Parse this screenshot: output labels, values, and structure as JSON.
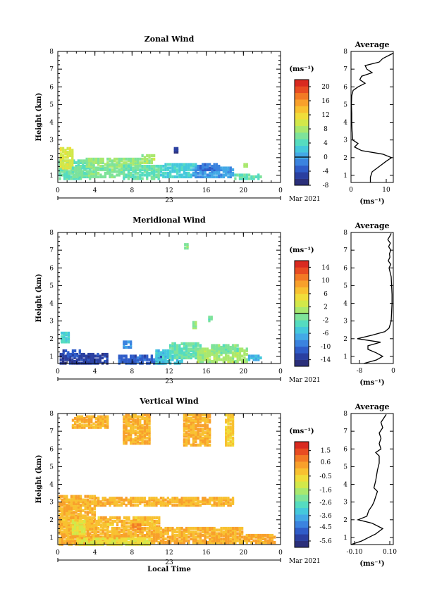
{
  "chart_data": [
    {
      "type": "heatmap",
      "title": "Zonal Wind",
      "ylabel": "Height (km)",
      "x_ticks": [
        "0",
        "4",
        "8",
        "12",
        "16",
        "20",
        "0"
      ],
      "y_ticks": [
        "1",
        "2",
        "3",
        "4",
        "5",
        "6",
        "7",
        "8"
      ],
      "xlim": [
        0,
        24
      ],
      "ylim": [
        0.6,
        8
      ],
      "date_day": "23",
      "date_label": "Mar 2021",
      "colorbar": {
        "unit": "(ms⁻¹)",
        "min": -8,
        "max": 22,
        "ticks": [
          "20",
          "16",
          "12",
          "8",
          "4",
          "0",
          "-4",
          "-8"
        ],
        "tick_values": [
          20,
          16,
          12,
          8,
          4,
          0,
          -4,
          -8
        ],
        "zero_line": 0
      },
      "cells_note_free": true,
      "blocks": [
        {
          "t0": 0.1,
          "t1": 3.5,
          "h0": 0.8,
          "h1": 1.9,
          "v": 5
        },
        {
          "t0": 0.2,
          "t1": 1.5,
          "h0": 1.4,
          "h1": 2.6,
          "v": 10
        },
        {
          "t0": 1.5,
          "t1": 7.0,
          "h0": 0.9,
          "h1": 1.5,
          "v": 6
        },
        {
          "t0": 3.0,
          "t1": 9.0,
          "h0": 1.5,
          "h1": 2.0,
          "v": 7
        },
        {
          "t0": 7.0,
          "t1": 11.0,
          "h0": 0.8,
          "h1": 1.6,
          "v": 5
        },
        {
          "t0": 9.0,
          "t1": 10.5,
          "h0": 1.7,
          "h1": 2.2,
          "v": 8
        },
        {
          "t0": 11.0,
          "t1": 15.0,
          "h0": 0.9,
          "h1": 1.7,
          "v": 3
        },
        {
          "t0": 14.5,
          "t1": 19.0,
          "h0": 0.9,
          "h1": 1.5,
          "v": 0
        },
        {
          "t0": 15.0,
          "t1": 17.5,
          "h0": 1.3,
          "h1": 1.7,
          "v": -2
        },
        {
          "t0": 19.0,
          "t1": 22.0,
          "h0": 0.8,
          "h1": 1.1,
          "v": 5
        },
        {
          "t0": 12.5,
          "t1": 12.9,
          "h0": 2.3,
          "h1": 2.6,
          "v": -6
        },
        {
          "t0": 20.0,
          "t1": 20.4,
          "h0": 1.5,
          "h1": 1.7,
          "v": 7
        }
      ],
      "profile": {
        "title": "Average",
        "x_ticks": [
          "0",
          "10"
        ],
        "xlim": [
          0,
          12
        ],
        "xlabel": "(ms⁻¹)",
        "heights": [
          0.6,
          0.9,
          1.2,
          1.5,
          1.8,
          2.0,
          2.2,
          2.4,
          2.6,
          2.8,
          3.0,
          3.5,
          4.0,
          4.5,
          5.0,
          5.5,
          5.8,
          6.0,
          6.2,
          6.4,
          6.6,
          6.8,
          7.0,
          7.2,
          7.4,
          7.6,
          7.8,
          7.9
        ],
        "values": [
          5.5,
          5.5,
          6,
          8,
          10,
          11.5,
          9,
          3,
          1,
          2,
          0.5,
          0.3,
          0.2,
          0.2,
          0.1,
          0.2,
          0.6,
          2,
          4,
          2.5,
          3,
          6,
          4.5,
          4,
          8,
          9,
          11,
          12
        ]
      }
    },
    {
      "type": "heatmap",
      "title": "Meridional Wind",
      "ylabel": "Height (km)",
      "x_ticks": [
        "0",
        "4",
        "8",
        "12",
        "16",
        "20",
        "0"
      ],
      "y_ticks": [
        "1",
        "2",
        "3",
        "4",
        "5",
        "6",
        "7",
        "8"
      ],
      "xlim": [
        0,
        24
      ],
      "ylim": [
        0.6,
        8
      ],
      "date_day": "23",
      "date_label": "Mar 2021",
      "colorbar": {
        "unit": "(ms⁻¹)",
        "min": -16,
        "max": 16,
        "ticks": [
          "14",
          "10",
          "6",
          "2",
          "-2",
          "-6",
          "-10",
          "-14"
        ],
        "tick_values": [
          14,
          10,
          6,
          2,
          -2,
          -6,
          -10,
          -14
        ],
        "zero_line": 0
      },
      "blocks": [
        {
          "t0": 0.2,
          "t1": 5.3,
          "h0": 0.6,
          "h1": 1.1,
          "v": -13
        },
        {
          "t0": 0.5,
          "t1": 2.5,
          "h0": 1.0,
          "h1": 1.4,
          "v": -12
        },
        {
          "t0": 0.3,
          "t1": 1.2,
          "h0": 1.8,
          "h1": 2.4,
          "v": -4
        },
        {
          "t0": 6.5,
          "t1": 11.5,
          "h0": 0.6,
          "h1": 1.0,
          "v": -11
        },
        {
          "t0": 7.0,
          "t1": 8.0,
          "h0": 1.5,
          "h1": 1.9,
          "v": -8
        },
        {
          "t0": 10.5,
          "t1": 13.5,
          "h0": 0.6,
          "h1": 1.4,
          "v": -5
        },
        {
          "t0": 12.0,
          "t1": 15.5,
          "h0": 0.9,
          "h1": 1.8,
          "v": -2
        },
        {
          "t0": 15.0,
          "t1": 20.5,
          "h0": 0.7,
          "h1": 1.5,
          "v": 1
        },
        {
          "t0": 16.5,
          "t1": 19.5,
          "h0": 1.2,
          "h1": 1.7,
          "v": -1
        },
        {
          "t0": 20.5,
          "t1": 22.0,
          "h0": 0.8,
          "h1": 1.1,
          "v": -6
        },
        {
          "t0": 14.5,
          "t1": 15.0,
          "h0": 2.6,
          "h1": 3.0,
          "v": 0
        },
        {
          "t0": 16.2,
          "t1": 16.6,
          "h0": 3.0,
          "h1": 3.3,
          "v": -2
        },
        {
          "t0": 13.6,
          "t1": 13.9,
          "h0": 7.1,
          "h1": 7.3,
          "v": -1
        }
      ],
      "profile": {
        "title": "Average",
        "x_ticks": [
          "-8",
          "0"
        ],
        "xlim": [
          -10,
          0
        ],
        "xlabel": "(ms⁻¹)",
        "heights": [
          0.6,
          0.8,
          1.0,
          1.2,
          1.4,
          1.6,
          1.8,
          2.0,
          2.2,
          2.4,
          2.6,
          3.0,
          3.5,
          4.0,
          4.5,
          5.0,
          5.5,
          5.8,
          6.0,
          6.2,
          6.4,
          6.6,
          6.8,
          7.0,
          7.2,
          7.4,
          7.6,
          7.8,
          7.95
        ],
        "values": [
          -7,
          -4,
          -2.5,
          -4,
          -6,
          -6,
          -3,
          -8.5,
          -5,
          -2,
          -1,
          -0.5,
          -0.4,
          -0.3,
          -0.3,
          -0.4,
          -0.5,
          -0.8,
          -1,
          -0.6,
          -1.2,
          -0.8,
          -0.9,
          -0.6,
          -1.1,
          -0.7,
          -1.3,
          -0.8,
          -0.5
        ]
      }
    },
    {
      "type": "heatmap",
      "title": "Vertical Wind",
      "ylabel": "Height (km)",
      "xlabel": "Local Time",
      "x_ticks": [
        "0",
        "4",
        "8",
        "12",
        "16",
        "20",
        "0"
      ],
      "y_ticks": [
        "1",
        "2",
        "3",
        "4",
        "5",
        "6",
        "7",
        "8"
      ],
      "xlim": [
        0,
        24
      ],
      "ylim": [
        0.6,
        8
      ],
      "date_day": "23",
      "date_label": "Mar 2021",
      "colorbar": {
        "unit": "(ms⁻¹)",
        "min": -6.1,
        "max": 2.2,
        "ticks": [
          "1.5",
          "0.6",
          "-0.5",
          "-1.6",
          "-2.6",
          "-3.6",
          "-4.5",
          "-5.6"
        ],
        "tick_values": [
          1.5,
          0.6,
          -0.5,
          -1.6,
          -2.6,
          -3.6,
          -4.5,
          -5.6
        ]
      },
      "blocks": [
        {
          "t0": 0.1,
          "t1": 4.0,
          "h0": 0.6,
          "h1": 3.4,
          "v": 0.1
        },
        {
          "t0": 4.0,
          "t1": 19.0,
          "h0": 2.8,
          "h1": 3.3,
          "v": 0.1
        },
        {
          "t0": 0.3,
          "t1": 11.0,
          "h0": 1.6,
          "h1": 2.2,
          "v": -0.1
        },
        {
          "t0": 1.0,
          "t1": 23.5,
          "h0": 0.7,
          "h1": 1.2,
          "v": 0.2
        },
        {
          "t0": 2.0,
          "t1": 10.0,
          "h0": 0.6,
          "h1": 0.9,
          "v": -0.8
        },
        {
          "t0": 4.0,
          "t1": 20.0,
          "h0": 1.2,
          "h1": 1.6,
          "v": 0.0
        },
        {
          "t0": 1.5,
          "t1": 3.0,
          "h0": 1.2,
          "h1": 2.0,
          "v": -1.0
        },
        {
          "t0": 7.0,
          "t1": 10.0,
          "h0": 6.3,
          "h1": 7.9,
          "v": 0.1
        },
        {
          "t0": 13.5,
          "t1": 16.5,
          "h0": 6.2,
          "h1": 7.9,
          "v": 0.1
        },
        {
          "t0": 1.5,
          "t1": 5.5,
          "h0": 7.2,
          "h1": 7.8,
          "v": 0.1
        },
        {
          "t0": 18.0,
          "t1": 19.0,
          "h0": 6.2,
          "h1": 7.9,
          "v": -0.3
        },
        {
          "t0": 8.0,
          "t1": 9.0,
          "h0": 1.5,
          "h1": 1.8,
          "v": 0.7
        }
      ],
      "profile": {
        "title": "Average",
        "x_ticks": [
          "-0.10",
          "0.10"
        ],
        "xlim": [
          -0.12,
          0.12
        ],
        "xlabel": "(ms⁻¹)",
        "heights": [
          0.6,
          0.8,
          1.0,
          1.2,
          1.5,
          1.8,
          2.0,
          2.2,
          2.5,
          2.8,
          3.0,
          3.3,
          3.6,
          3.8,
          4.2,
          4.8,
          5.2,
          5.6,
          5.8,
          6.0,
          6.3,
          6.6,
          6.9,
          7.2,
          7.5,
          7.8,
          7.95
        ],
        "values": [
          -0.12,
          -0.06,
          -0.02,
          0.02,
          0.06,
          0.0,
          -0.08,
          -0.03,
          -0.02,
          0.0,
          0.01,
          0.02,
          0.03,
          0.01,
          0.02,
          0.03,
          0.04,
          0.04,
          0.02,
          0.05,
          0.04,
          0.05,
          0.04,
          0.06,
          0.05,
          0.07,
          0.08
        ]
      }
    }
  ]
}
